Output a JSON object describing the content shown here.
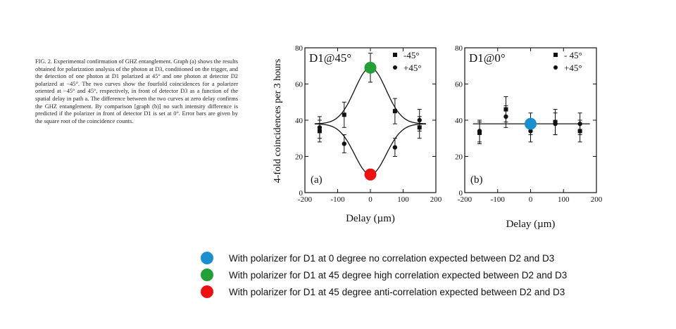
{
  "caption": "FIG. 2.  Experimental confirmation of GHZ entanglement. Graph (a) shows the results obtained for polarization analysis of the photon at D3, conditioned on the trigger, and the detection of one photon at D1 polarized at 45° and one photon at detector D2 polarized at −45°. The two curves show the fourfold coincidences for a polarizer oriented at −45° and 45°, respectively, in front of detector D3 as a function of the spatial delay in path a. The difference between the two curves at zero delay confirms the GHZ entanglement. By comparison [graph (b)] no such intensity difference is predicted if the polarizer in front of detector D1 is set at 0°. Error bars are given by the square root of the coincidence counts.",
  "ylabel": "4-fold coincidences per 3 hours",
  "chart_data": [
    {
      "type": "scatter",
      "panel_label": "(a)",
      "title": "D1@45°",
      "xlabel": "Delay (µm)",
      "xlim": [
        -200,
        200
      ],
      "ylim": [
        0,
        80
      ],
      "xticks": [
        -200,
        -100,
        0,
        100,
        200
      ],
      "yticks": [
        0,
        20,
        40,
        60,
        80
      ],
      "fit_baseline": 38,
      "series": [
        {
          "name": "-45°",
          "marker": "square",
          "x": [
            -155,
            -80,
            0,
            75,
            150
          ],
          "y": [
            34,
            43,
            69,
            45,
            36
          ],
          "err": [
            6,
            7,
            8,
            7,
            6
          ]
        },
        {
          "name": "+45°",
          "marker": "circle",
          "x": [
            -155,
            -80,
            0,
            75,
            150
          ],
          "y": [
            36,
            27,
            10,
            25,
            40
          ],
          "err": [
            6,
            5,
            3,
            5,
            6
          ]
        }
      ],
      "highlights": [
        {
          "x": 0,
          "y": 69,
          "color": "#22a037"
        },
        {
          "x": 0,
          "y": 10,
          "color": "#ee1111"
        }
      ]
    },
    {
      "type": "scatter",
      "panel_label": "(b)",
      "title": "D1@0°",
      "xlabel": "Delay (µm)",
      "xlim": [
        -200,
        200
      ],
      "ylim": [
        0,
        80
      ],
      "xticks": [
        -200,
        -100,
        0,
        100,
        200
      ],
      "yticks": [
        0,
        20,
        40,
        60,
        80
      ],
      "fit_baseline": 38,
      "series": [
        {
          "name": "- 45°",
          "marker": "square",
          "x": [
            -155,
            -75,
            0,
            75,
            150
          ],
          "y": [
            33,
            46,
            38,
            39,
            34
          ],
          "err": [
            6,
            7,
            6,
            7,
            6
          ]
        },
        {
          "name": "+45°",
          "marker": "circle",
          "x": [
            -155,
            -75,
            0,
            75,
            150
          ],
          "y": [
            34,
            42,
            34,
            38,
            38
          ],
          "err": [
            6,
            6,
            6,
            6,
            6
          ]
        }
      ],
      "highlights": [
        {
          "x": 0,
          "y": 38,
          "color": "#1a8fd0"
        }
      ]
    }
  ],
  "legend": [
    {
      "color": "#1a8fd0",
      "text": "With polarizer for D1 at 0 degree no correlation expected between D2 and D3"
    },
    {
      "color": "#22a037",
      "text": "With polarizer for D1 at 45 degree high correlation expected between D2 and D3"
    },
    {
      "color": "#ee1111",
      "text": "With polarizer for D1 at 45 degree anti-correlation expected between D2 and D3"
    }
  ]
}
